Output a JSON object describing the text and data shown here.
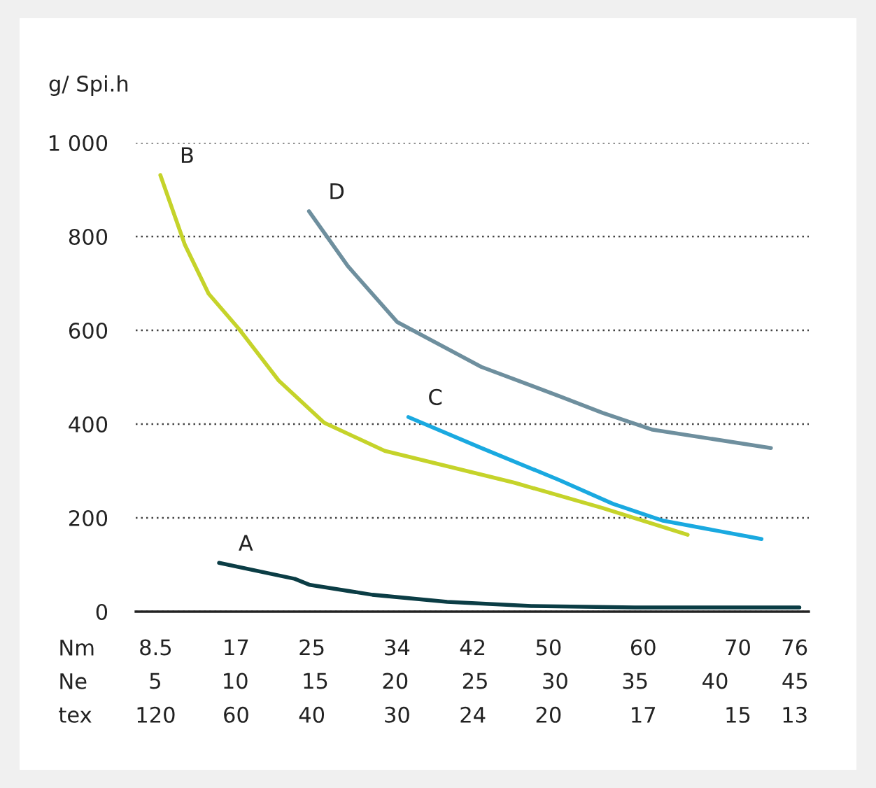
{
  "chart_data": {
    "type": "line",
    "ylabel": "g/ Spi.h",
    "xlabel": "Nm",
    "x2label": "Ne",
    "xlim": [
      6.4,
      77.5
    ],
    "ylim": [
      0,
      1000
    ],
    "x2lim": [
      3.78,
      45.86
    ],
    "annotations": [
      "tex",
      "120",
      "60",
      "40",
      "30",
      "24",
      "20",
      "17",
      "15",
      "13"
    ],
    "xticks": [
      8.5,
      17,
      25,
      34,
      42,
      50,
      60,
      70,
      76
    ],
    "x2ticks": [
      5,
      10,
      15,
      20,
      25,
      30,
      35,
      40,
      45
    ],
    "yticks": [
      0,
      200,
      400,
      600,
      800,
      {
        "value": 1000,
        "label": "1 000"
      }
    ],
    "grid": "y",
    "marker": "none",
    "line_style": "solid",
    "series": [
      {
        "name": "A",
        "color": "#0b3d45",
        "x": [
          15.2,
          23.2,
          24.8,
          31.4,
          39.3,
          48.2,
          59.1,
          76.5
        ],
        "values": [
          104,
          70,
          57,
          36,
          21,
          12,
          9,
          9
        ]
      },
      {
        "name": "B",
        "color": "#c5d32a",
        "x": [
          9.0,
          11.6,
          14.1,
          17.3,
          21.5,
          26.3,
          32.7,
          46.4,
          55.7,
          64.7
        ],
        "values": [
          931,
          782,
          678,
          603,
          493,
          403,
          343,
          275,
          221,
          164
        ]
      },
      {
        "name": "C",
        "color": "#1aa9e0",
        "x": [
          35.2,
          42.9,
          51.1,
          56.8,
          62.1,
          72.5
        ],
        "values": [
          415,
          349,
          281,
          230,
          194,
          155
        ]
      },
      {
        "name": "D",
        "color": "#6e8f9e",
        "x": [
          24.7,
          28.8,
          34.0,
          42.9,
          51.1,
          55.7,
          61.0,
          73.5
        ],
        "values": [
          854,
          737,
          618,
          522,
          460,
          424,
          388,
          349
        ]
      }
    ]
  }
}
